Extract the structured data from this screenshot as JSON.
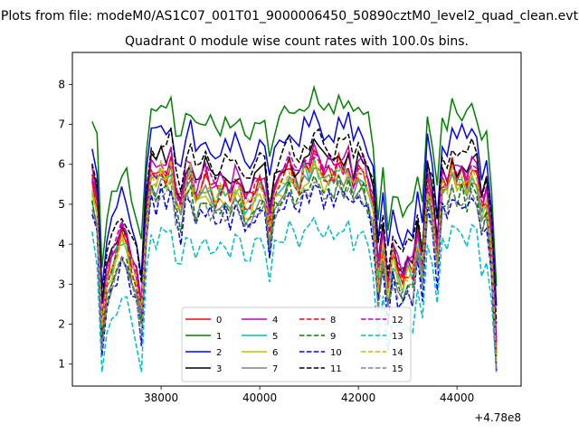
{
  "chart_data": {
    "type": "line",
    "suptitle": "Plots from file: modeM0/AS1C07_001T01_9000006450_50890cztM0_level2_quad_clean.evt",
    "title": "Quadrant 0 module wise count rates with 100.0s bins.",
    "xlabel": "",
    "ylabel": "",
    "x_offset_label": "+4.78e8",
    "xlim": [
      36200,
      45300
    ],
    "ylim": [
      0.45,
      8.8
    ],
    "x_ticks": [
      38000,
      40000,
      42000,
      44000
    ],
    "x_tick_labels": [
      "38000",
      "40000",
      "42000",
      "44000"
    ],
    "y_ticks": [
      1,
      2,
      3,
      4,
      5,
      6,
      7,
      8
    ],
    "y_tick_labels": [
      "1",
      "2",
      "3",
      "4",
      "5",
      "6",
      "7",
      "8"
    ],
    "legend_position": "lower center",
    "legend_columns": 4,
    "x": [
      36600,
      36700,
      36800,
      36900,
      37000,
      37100,
      37200,
      37300,
      37400,
      37500,
      37600,
      37700,
      37800,
      37900,
      38000,
      38100,
      38200,
      38300,
      38400,
      38500,
      38600,
      38700,
      38800,
      38900,
      39000,
      39100,
      39200,
      39300,
      39400,
      39500,
      39600,
      39700,
      39800,
      39900,
      40000,
      40100,
      40200,
      40300,
      40400,
      40500,
      40600,
      40700,
      40800,
      40900,
      41000,
      41100,
      41200,
      41300,
      41400,
      41500,
      41600,
      41700,
      41800,
      41900,
      42000,
      42100,
      42200,
      42300,
      42400,
      42500,
      42600,
      42700,
      42800,
      42900,
      43000,
      43100,
      43200,
      43300,
      43400,
      43500,
      43600,
      43700,
      43800,
      43900,
      44000,
      44100,
      44200,
      44300,
      44400,
      44500,
      44600,
      44700,
      44800
    ],
    "base_values": [
      5.6,
      5.0,
      2.0,
      3.2,
      3.5,
      3.9,
      4.3,
      4.1,
      3.6,
      3.2,
      2.4,
      4.8,
      5.9,
      5.7,
      6.0,
      5.8,
      6.1,
      5.3,
      5.0,
      5.7,
      5.9,
      5.3,
      5.4,
      5.7,
      5.5,
      5.3,
      5.4,
      5.5,
      5.3,
      5.6,
      5.5,
      5.2,
      5.1,
      5.4,
      5.6,
      5.5,
      4.5,
      5.4,
      5.6,
      5.7,
      6.0,
      5.7,
      5.6,
      6.0,
      5.9,
      6.2,
      6.1,
      5.8,
      5.9,
      5.8,
      6.1,
      5.9,
      6.1,
      5.6,
      6.0,
      5.8,
      5.5,
      5.0,
      3.2,
      4.1,
      2.9,
      3.8,
      3.4,
      3.2,
      3.5,
      3.4,
      4.2,
      3.5,
      5.6,
      5.0,
      3.8,
      5.6,
      5.5,
      5.9,
      5.7,
      5.8,
      5.6,
      5.9,
      5.8,
      4.9,
      5.2,
      4.0,
      1.3
    ],
    "series": [
      {
        "name": "0",
        "color": "#ff0000",
        "dash": "solid",
        "offset": 0.0
      },
      {
        "name": "1",
        "color": "#008000",
        "dash": "solid",
        "offset": 1.55
      },
      {
        "name": "2",
        "color": "#0000ff",
        "dash": "solid",
        "offset": 0.95
      },
      {
        "name": "3",
        "color": "#000000",
        "dash": "solid",
        "offset": 0.25
      },
      {
        "name": "4",
        "color": "#bf00bf",
        "dash": "solid",
        "offset": 0.15
      },
      {
        "name": "5",
        "color": "#00bfbf",
        "dash": "solid",
        "offset": -0.2
      },
      {
        "name": "6",
        "color": "#bfbf00",
        "dash": "solid",
        "offset": -0.3
      },
      {
        "name": "7",
        "color": "#808080",
        "dash": "solid",
        "offset": -0.4
      },
      {
        "name": "8",
        "color": "#ff0000",
        "dash": "dashed",
        "offset": -0.1
      },
      {
        "name": "9",
        "color": "#008000",
        "dash": "dashed",
        "offset": -0.55
      },
      {
        "name": "10",
        "color": "#0000ff",
        "dash": "dashed",
        "offset": -0.75
      },
      {
        "name": "11",
        "color": "#000000",
        "dash": "dashed",
        "offset": 0.55
      },
      {
        "name": "12",
        "color": "#bf00bf",
        "dash": "dashed",
        "offset": 0.05
      },
      {
        "name": "13",
        "color": "#00bfbf",
        "dash": "dashed",
        "offset": -1.55
      },
      {
        "name": "14",
        "color": "#bfbf00",
        "dash": "dashed",
        "offset": -0.15
      },
      {
        "name": "15",
        "color": "#808080",
        "dash": "dashed",
        "offset": -0.65
      }
    ]
  }
}
